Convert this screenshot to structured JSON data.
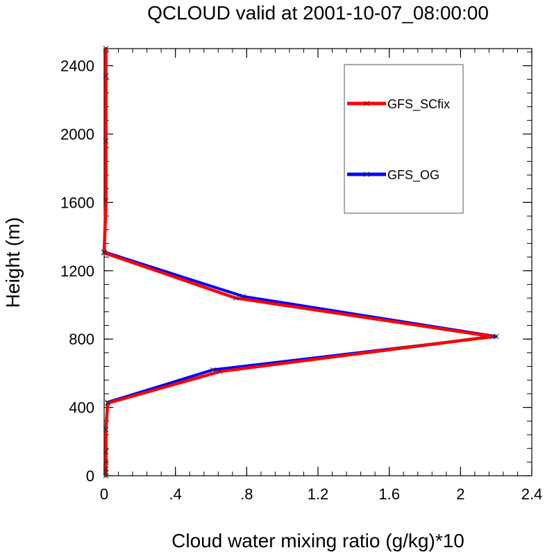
{
  "chart_data": {
    "type": "line",
    "title": "QCLOUD valid at 2001-10-07_08:00:00",
    "xlabel": "Cloud water mixing ratio (g/kg)*10",
    "ylabel": "Height (m)",
    "xlim": [
      0,
      2.4
    ],
    "ylim": [
      0,
      2500
    ],
    "x_ticks": [
      {
        "value": 0,
        "label": "0"
      },
      {
        "value": 0.4,
        "label": ".4"
      },
      {
        "value": 0.8,
        "label": ".8"
      },
      {
        "value": 1.2,
        "label": "1.2"
      },
      {
        "value": 1.6,
        "label": "1.6"
      },
      {
        "value": 2.0,
        "label": "2"
      },
      {
        "value": 2.4,
        "label": "2.4"
      }
    ],
    "y_ticks": [
      {
        "value": 0,
        "label": "0"
      },
      {
        "value": 400,
        "label": "400"
      },
      {
        "value": 800,
        "label": "800"
      },
      {
        "value": 1200,
        "label": "1200"
      },
      {
        "value": 1600,
        "label": "1600"
      },
      {
        "value": 2000,
        "label": "2000"
      },
      {
        "value": 2400,
        "label": "2400"
      }
    ],
    "grid": false,
    "legend_position": "top-right",
    "series": [
      {
        "name": "GFS_OG",
        "color": "#0000ff",
        "marker": "x",
        "points": [
          [
            0.01,
            0
          ],
          [
            0.01,
            20
          ],
          [
            0.01,
            40
          ],
          [
            0.01,
            80
          ],
          [
            0.01,
            140
          ],
          [
            0.01,
            270
          ],
          [
            0.02,
            430
          ],
          [
            0.61,
            620
          ],
          [
            2.2,
            815
          ],
          [
            0.78,
            1050
          ],
          [
            0.0,
            1310
          ],
          [
            0.01,
            1610
          ],
          [
            0.01,
            1960
          ],
          [
            0.01,
            2340
          ],
          [
            0.01,
            2500
          ]
        ]
      },
      {
        "name": "GFS_SCfix",
        "color": "#ff0000",
        "marker": "x",
        "points": [
          [
            0.01,
            0
          ],
          [
            0.01,
            20
          ],
          [
            0.01,
            40
          ],
          [
            0.01,
            80
          ],
          [
            0.01,
            140
          ],
          [
            0.01,
            270
          ],
          [
            0.02,
            425
          ],
          [
            0.65,
            610
          ],
          [
            2.18,
            815
          ],
          [
            0.74,
            1040
          ],
          [
            0.0,
            1305
          ],
          [
            0.01,
            1610
          ],
          [
            0.01,
            1960
          ],
          [
            0.01,
            2340
          ],
          [
            0.01,
            2500
          ]
        ]
      }
    ]
  }
}
